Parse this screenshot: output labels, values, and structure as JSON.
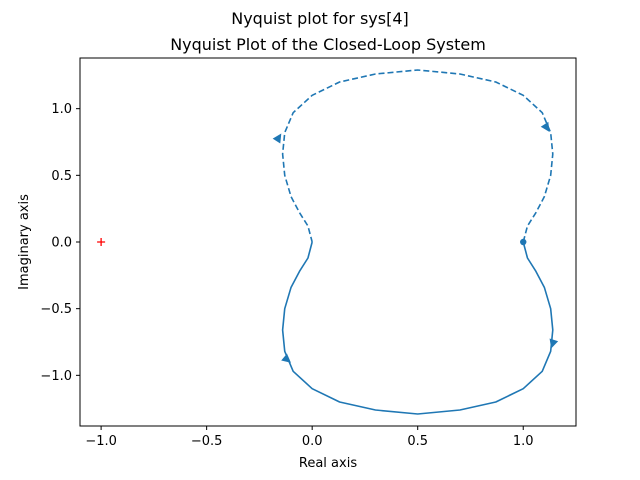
{
  "chart_data": {
    "type": "line",
    "suptitle": "Nyquist plot for sys[4]",
    "title": "Nyquist Plot of the Closed-Loop System",
    "xlabel": "Real axis",
    "ylabel": "Imaginary axis",
    "xlim": [
      -1.1,
      1.25
    ],
    "ylim": [
      -1.38,
      1.38
    ],
    "xticks": [
      -1.0,
      -0.5,
      0.0,
      0.5,
      1.0
    ],
    "xtick_labels": [
      "−1.0",
      "−0.5",
      "0.0",
      "0.5",
      "1.0"
    ],
    "yticks": [
      -1.0,
      -0.5,
      0.0,
      0.5,
      1.0
    ],
    "ytick_labels": [
      "−1.0",
      "−0.5",
      "0.0",
      "0.5",
      "1.0"
    ],
    "grid": false,
    "line_color": "#1f77b4",
    "critical_point_color": "#ff0000",
    "series": [
      {
        "style": "solid",
        "x": [
          1.0,
          1.02,
          1.06,
          1.1,
          1.13,
          1.14,
          1.13,
          1.09,
          1.0,
          0.87,
          0.7,
          0.5,
          0.3,
          0.13,
          0.0,
          -0.09,
          -0.13,
          -0.14,
          -0.13,
          -0.1,
          -0.06,
          -0.02,
          0.0
        ],
        "y": [
          0.0,
          -0.12,
          -0.22,
          -0.34,
          -0.5,
          -0.66,
          -0.82,
          -0.97,
          -1.1,
          -1.2,
          -1.26,
          -1.29,
          -1.26,
          -1.2,
          -1.1,
          -0.97,
          -0.82,
          -0.66,
          -0.5,
          -0.34,
          -0.22,
          -0.12,
          0.0
        ]
      },
      {
        "style": "dashed",
        "x": [
          1.0,
          1.02,
          1.06,
          1.1,
          1.13,
          1.14,
          1.13,
          1.09,
          1.0,
          0.87,
          0.7,
          0.5,
          0.3,
          0.13,
          0.0,
          -0.09,
          -0.13,
          -0.14,
          -0.13,
          -0.1,
          -0.06,
          -0.02,
          0.0
        ],
        "y": [
          0.0,
          0.12,
          0.22,
          0.34,
          0.5,
          0.66,
          0.82,
          0.97,
          1.1,
          1.2,
          1.26,
          1.29,
          1.26,
          1.2,
          1.1,
          0.97,
          0.82,
          0.66,
          0.5,
          0.34,
          0.22,
          0.12,
          0.0
        ]
      }
    ],
    "arrows": [
      {
        "x": 1.14,
        "y": -0.76,
        "dx": -0.01,
        "dy": -0.05
      },
      {
        "x": -0.12,
        "y": -0.88,
        "dx": 0.03,
        "dy": -0.04
      },
      {
        "x": -0.16,
        "y": 0.78,
        "dx": 0.02,
        "dy": 0.05
      },
      {
        "x": 1.11,
        "y": 0.86,
        "dx": 0.02,
        "dy": -0.05
      }
    ],
    "start_marker": {
      "x": 1.0,
      "y": 0.0
    },
    "critical_point": {
      "x": -1.0,
      "y": 0.0
    }
  }
}
